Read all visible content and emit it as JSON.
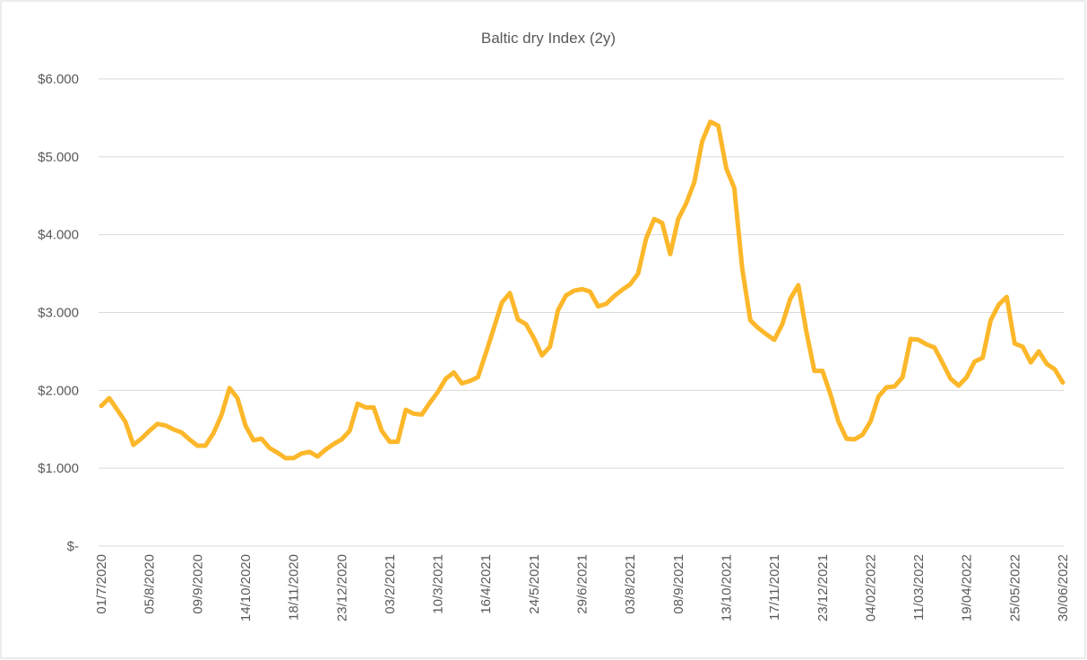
{
  "chart_data": {
    "type": "line",
    "title": "Baltic dry Index (2y)",
    "categories": [
      "01/7/2020",
      null,
      null,
      null,
      null,
      null,
      "05/8/2020",
      null,
      null,
      null,
      null,
      null,
      "09/9/2020",
      null,
      null,
      null,
      null,
      null,
      "14/10/2020",
      null,
      null,
      null,
      null,
      null,
      "18/11/2020",
      null,
      null,
      null,
      null,
      null,
      "23/12/2020",
      null,
      null,
      null,
      null,
      null,
      "03/2/2021",
      null,
      null,
      null,
      null,
      null,
      "10/3/2021",
      null,
      null,
      null,
      null,
      null,
      "16/4/2021",
      null,
      null,
      null,
      null,
      null,
      "24/5/2021",
      null,
      null,
      null,
      null,
      null,
      "29/6/2021",
      null,
      null,
      null,
      null,
      null,
      "03/8/2021",
      null,
      null,
      null,
      null,
      null,
      "08/9/2021",
      null,
      null,
      null,
      null,
      null,
      "13/10/2021",
      null,
      null,
      null,
      null,
      null,
      "17/11/2021",
      null,
      null,
      null,
      null,
      null,
      "23/12/2021",
      null,
      null,
      null,
      null,
      null,
      "04/02/2022",
      null,
      null,
      null,
      null,
      null,
      "11/03/2022",
      null,
      null,
      null,
      null,
      null,
      "19/04/2022",
      null,
      null,
      null,
      null,
      null,
      "25/05/2022",
      null,
      null,
      null,
      null,
      null,
      "30/06/2022"
    ],
    "series": [
      {
        "name": "Baltic dry Index",
        "color": "#fcb72a",
        "values": [
          1800,
          1900,
          1750,
          1600,
          1300,
          1380,
          1480,
          1570,
          1550,
          1500,
          1460,
          1370,
          1290,
          1290,
          1450,
          1680,
          2030,
          1900,
          1550,
          1360,
          1380,
          1260,
          1200,
          1130,
          1130,
          1190,
          1210,
          1150,
          1240,
          1310,
          1370,
          1480,
          1830,
          1780,
          1780,
          1480,
          1340,
          1340,
          1750,
          1700,
          1690,
          1840,
          1980,
          2150,
          2230,
          2090,
          2120,
          2170,
          2480,
          2800,
          3130,
          3250,
          2910,
          2850,
          2670,
          2450,
          2560,
          3030,
          3220,
          3280,
          3300,
          3270,
          3080,
          3110,
          3210,
          3290,
          3360,
          3500,
          3950,
          4200,
          4150,
          3750,
          4200,
          4400,
          4670,
          5200,
          5450,
          5400,
          4850,
          4600,
          3560,
          2900,
          2800,
          2720,
          2650,
          2850,
          3180,
          3350,
          2750,
          2250,
          2250,
          1950,
          1600,
          1380,
          1370,
          1430,
          1600,
          1920,
          2040,
          2050,
          2170,
          2660,
          2650,
          2590,
          2550,
          2350,
          2150,
          2060,
          2170,
          2370,
          2420,
          2900,
          3100,
          3200,
          2600,
          2560,
          2360,
          2500,
          2340,
          2270,
          2100
        ]
      }
    ],
    "ylim": [
      0,
      6000
    ],
    "yticks": [
      {
        "value": 0,
        "label": "$-"
      },
      {
        "value": 1000,
        "label": "$1.000"
      },
      {
        "value": 2000,
        "label": "$2.000"
      },
      {
        "value": 3000,
        "label": "$3.000"
      },
      {
        "value": 4000,
        "label": "$4.000"
      },
      {
        "value": 5000,
        "label": "$5.000"
      },
      {
        "value": 6000,
        "label": "$6.000"
      }
    ],
    "grid": true
  }
}
